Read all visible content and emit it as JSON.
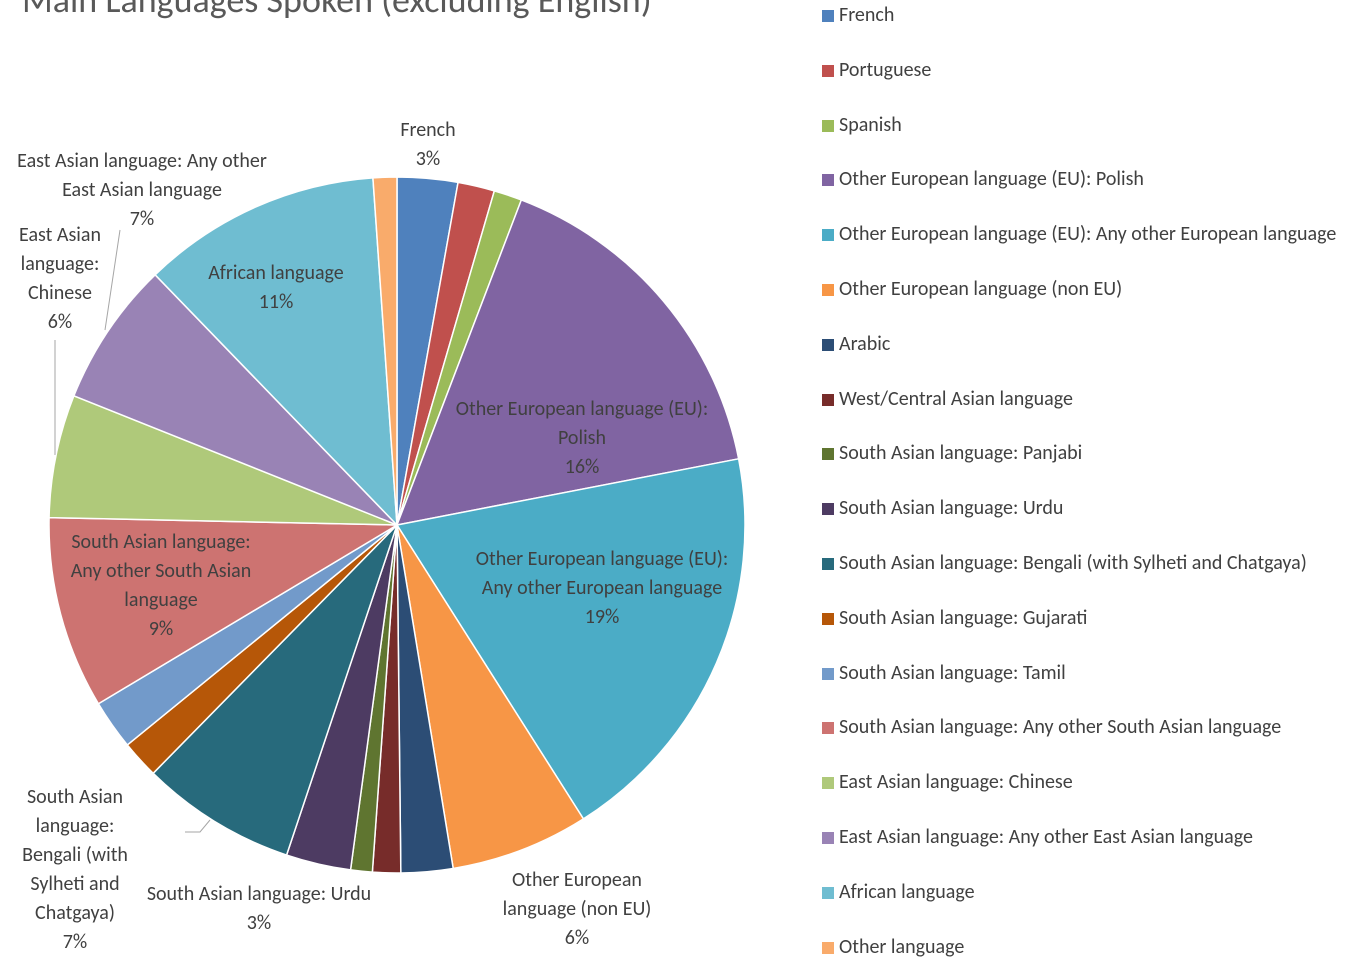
{
  "chart_data": {
    "type": "pie",
    "title": "Main Languages Spoken (excluding English)",
    "categories": [
      "French",
      "Portuguese",
      "Spanish",
      "Other European language (EU): Polish",
      "Other European language (EU): Any other European language",
      "Other European language (non EU)",
      "Arabic",
      "West/Central Asian language",
      "South Asian language: Panjabi",
      "South Asian language: Urdu",
      "South Asian language: Bengali (with Sylheti and Chatgaya)",
      "South Asian language: Gujarati",
      "South Asian language: Tamil",
      "South Asian language: Any other South Asian language",
      "East Asian language: Chinese",
      "East Asian language: Any other East Asian language",
      "African language",
      "Other language"
    ],
    "values": [
      2.8,
      1.7,
      1.3,
      16.1,
      19,
      6.4,
      2.4,
      1.3,
      1,
      3,
      7.2,
      1.75,
      2.3,
      8.9,
      5.7,
      6.7,
      11.1,
      1.1
    ],
    "value_labels": [
      "3%",
      null,
      null,
      "16%",
      "19%",
      "6%",
      null,
      null,
      null,
      "3%",
      "7%",
      null,
      null,
      "9%",
      "6%",
      "7%",
      "11%",
      null
    ],
    "colors": [
      "#4f81bd",
      "#c0504d",
      "#9bbb59",
      "#8064a2",
      "#4bacc6",
      "#f79646",
      "#2c4d75",
      "#772c2a",
      "#5f7530",
      "#4d3b62",
      "#276a7c",
      "#b65708",
      "#729aca",
      "#cd7371",
      "#afc97a",
      "#9983b5",
      "#6fbdd1",
      "#f9ab6b"
    ],
    "legend": "right"
  }
}
